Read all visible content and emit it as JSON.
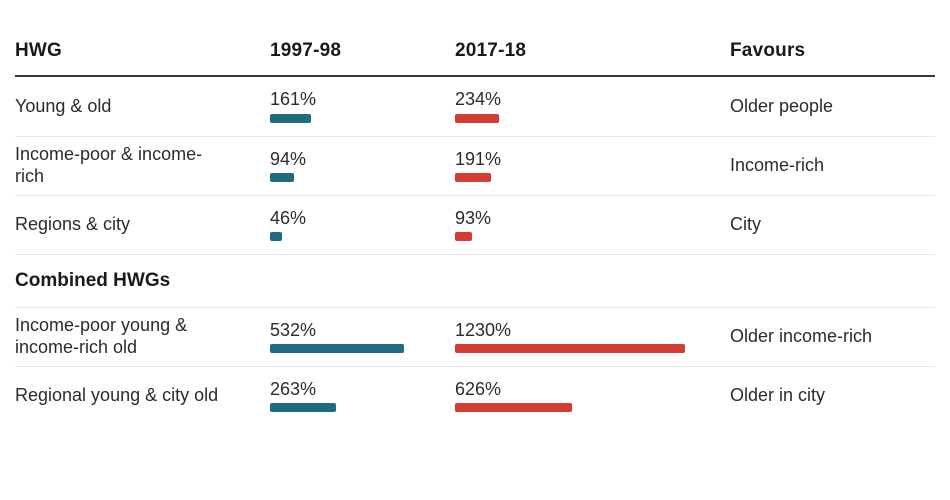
{
  "colors": {
    "teal": "#1f6b82",
    "red": "#d43b33",
    "header_rule": "#383838",
    "divider": "#e9e9e9",
    "text": "#2b2b2b",
    "heading_text": "#1a1a1a"
  },
  "header": {
    "col_hwg": "HWG",
    "col_1997": "1997-98",
    "col_2017": "2017-18",
    "col_favours": "Favours"
  },
  "section": {
    "title": "Combined HWGs"
  },
  "rows": [
    {
      "label": "Young & old",
      "y1997": {
        "text": "161%",
        "value": 161
      },
      "y2017": {
        "text": "234%",
        "value": 234
      },
      "favours": "Older people"
    },
    {
      "label": "Income-poor & income-rich",
      "y1997": {
        "text": "94%",
        "value": 94
      },
      "y2017": {
        "text": "191%",
        "value": 191
      },
      "favours": "Income-rich"
    },
    {
      "label": "Regions & city",
      "y1997": {
        "text": "46%",
        "value": 46
      },
      "y2017": {
        "text": "93%",
        "value": 93
      },
      "favours": "City"
    },
    {
      "label": "Income-poor young & income-rich old",
      "y1997": {
        "text": "532%",
        "value": 532
      },
      "y2017": {
        "text": "1230%",
        "value": 1230
      },
      "favours": "Older income-rich"
    },
    {
      "label": "Regional young & city old",
      "y1997": {
        "text": "263%",
        "value": 263
      },
      "y2017": {
        "text": "626%",
        "value": 626
      },
      "favours": "Older in city"
    }
  ],
  "chart_data": {
    "type": "bar",
    "title": "",
    "unit": "%",
    "categories": [
      "Young & old",
      "Income-poor & income-rich",
      "Regions & city",
      "Income-poor young & income-rich old",
      "Regional young & city old"
    ],
    "series": [
      {
        "name": "1997-98",
        "values": [
          161,
          94,
          46,
          532,
          263
        ],
        "color": "#1f6b82"
      },
      {
        "name": "2017-18",
        "values": [
          234,
          191,
          93,
          1230,
          626
        ],
        "color": "#d43b33"
      }
    ],
    "annotations": {
      "favours_column": [
        "Older people",
        "Income-rich",
        "City",
        "Older income-rich",
        "Older in city"
      ]
    },
    "sections": [
      {
        "title": "Combined HWGs",
        "row_indexes": [
          3,
          4
        ]
      }
    ],
    "layout": "table-with-inline-bars, bars-left-aligned-under-value-labels, grid-off, no-axes"
  }
}
